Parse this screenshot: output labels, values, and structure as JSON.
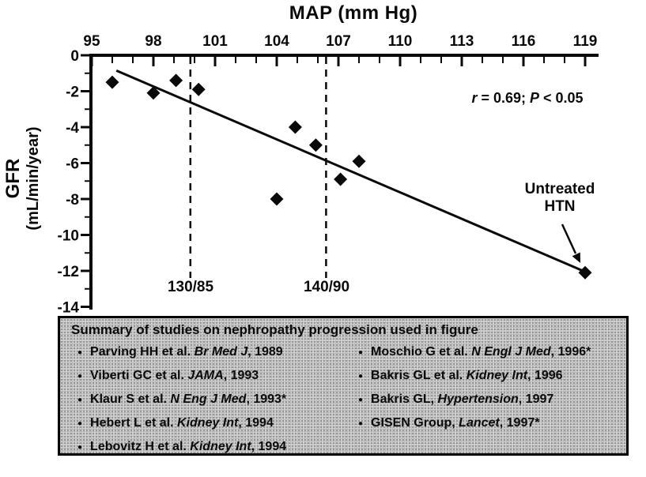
{
  "figure": {
    "x_axis_title": "MAP (mm Hg)",
    "y_axis_title_line1": "GFR",
    "y_axis_title_line2": "(mL/min/year)"
  },
  "chart_data": {
    "type": "scatter",
    "xlabel": "MAP (mm Hg)",
    "ylabel": "GFR (mL/min/year)",
    "xlim": [
      95,
      119
    ],
    "ylim": [
      -14,
      0
    ],
    "x_major_ticks": [
      95,
      98,
      101,
      104,
      107,
      110,
      113,
      116,
      119
    ],
    "x_minor_step": 1,
    "y_major_ticks": [
      0,
      -2,
      -4,
      -6,
      -8,
      -10,
      -12,
      -14
    ],
    "y_minor_step": 1,
    "grid": false,
    "points": [
      [
        96,
        -1.5
      ],
      [
        98,
        -2.1
      ],
      [
        99.1,
        -1.4
      ],
      [
        100.2,
        -1.9
      ],
      [
        104,
        -8
      ],
      [
        104.9,
        -4
      ],
      [
        105.9,
        -5
      ],
      [
        107.1,
        -6.9
      ],
      [
        108,
        -5.9
      ],
      [
        119,
        -12.1
      ]
    ],
    "trendline": {
      "x1": 96.2,
      "y1": -0.85,
      "x2": 119,
      "y2": -12.05
    },
    "reference_lines": [
      {
        "x": 99.8,
        "label": "130/85"
      },
      {
        "x": 106.4,
        "label": "140/90"
      }
    ],
    "stats_annotation": "r = 0.69; P < 0.05",
    "outlier_label": {
      "text": "Untreated HTN",
      "x": 119,
      "y": -12.1
    }
  },
  "annotation": {
    "parts": [
      {
        "text": "r",
        "italic": true
      },
      {
        "text": " = 0.69; ",
        "italic": false
      },
      {
        "text": "P",
        "italic": true
      },
      {
        "text": " < 0.05",
        "italic": false
      }
    ]
  },
  "untreated": {
    "line1": "Untreated",
    "line2": "HTN"
  },
  "bp_labels": {
    "first": "130/85",
    "second": "140/90"
  },
  "colors": {
    "ink": "#0a0a0a",
    "legend_bg": "#d2d2d2"
  },
  "legend": {
    "title": "Summary of studies on nephropathy progression used in figure",
    "bullet": "●",
    "left": [
      {
        "pre": "Parving HH et al. ",
        "journal": "Br Med J",
        "post": ", 1989"
      },
      {
        "pre": "Viberti GC et al. ",
        "journal": "JAMA",
        "post": ", 1993"
      },
      {
        "pre": "Klaur S et al. ",
        "journal": "N Eng J Med",
        "post": ", 1993*"
      },
      {
        "pre": "Hebert L et al. ",
        "journal": "Kidney Int",
        "post": ", 1994"
      },
      {
        "pre": "Lebovitz H et al. ",
        "journal": "Kidney Int",
        "post": ", 1994"
      }
    ],
    "right": [
      {
        "pre": "Moschio G et al. ",
        "journal": "N Engl J Med",
        "post": ", 1996*"
      },
      {
        "pre": "Bakris GL et al. ",
        "journal": "Kidney Int",
        "post": ", 1996"
      },
      {
        "pre": "Bakris GL, ",
        "journal": "Hypertension",
        "post": ", 1997"
      },
      {
        "pre": "GISEN Group, ",
        "journal": "Lancet",
        "post": ", 1997*"
      }
    ]
  }
}
